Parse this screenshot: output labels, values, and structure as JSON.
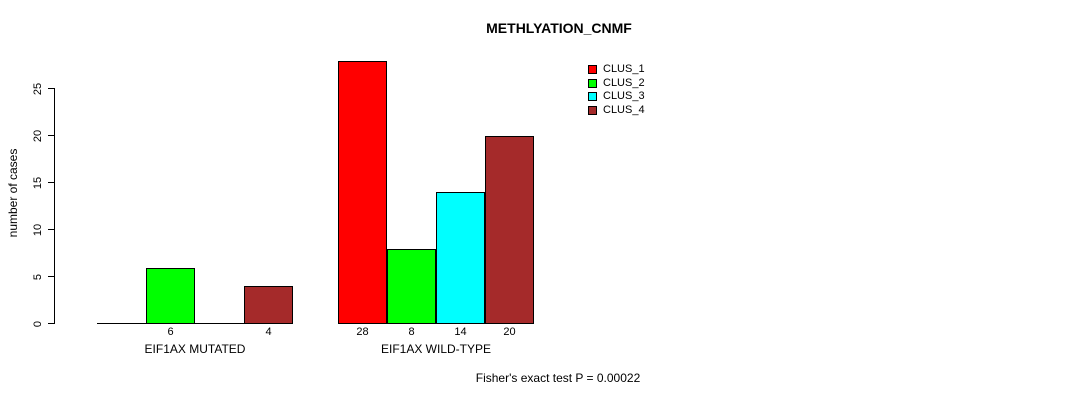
{
  "chart_data": {
    "type": "bar",
    "title": "METHLYATION_CNMF",
    "ylabel": "number of cases",
    "xlabel": "",
    "yticks": [
      0,
      5,
      10,
      15,
      20,
      25
    ],
    "ylim": [
      0,
      29
    ],
    "grid": false,
    "legend_position": "top-right",
    "legend": [
      {
        "label": "CLUS_1",
        "color": "#FF0000"
      },
      {
        "label": "CLUS_2",
        "color": "#00FF00"
      },
      {
        "label": "CLUS_3",
        "color": "#00FFFF"
      },
      {
        "label": "CLUS_4",
        "color": "#A52A2A"
      }
    ],
    "groups": [
      {
        "label": "EIF1AX MUTATED",
        "values": [
          0,
          6,
          0,
          4
        ],
        "bar_labels": [
          "",
          "6",
          "",
          "4"
        ]
      },
      {
        "label": "EIF1AX WILD-TYPE",
        "values": [
          28,
          8,
          14,
          20
        ],
        "bar_labels": [
          "28",
          "8",
          "14",
          "20"
        ]
      }
    ],
    "footnote": "Fisher's exact test P = 0.00022"
  }
}
